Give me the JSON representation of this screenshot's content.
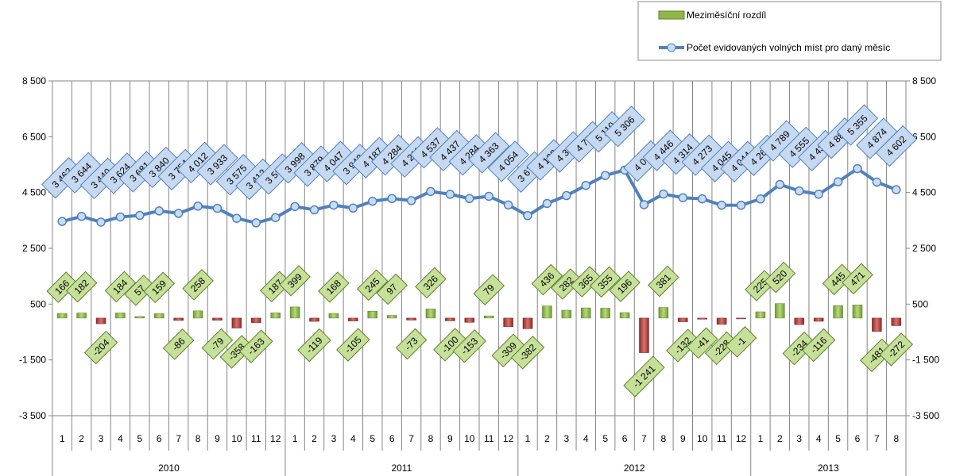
{
  "chart_data": {
    "type": "bar+line",
    "years": [
      {
        "label": "2010",
        "months": 12
      },
      {
        "label": "2011",
        "months": 12
      },
      {
        "label": "2012",
        "months": 12
      },
      {
        "label": "2013",
        "months": 8
      }
    ],
    "categories": [
      "1",
      "2",
      "3",
      "4",
      "5",
      "6",
      "7",
      "8",
      "9",
      "10",
      "11",
      "12",
      "1",
      "2",
      "3",
      "4",
      "5",
      "6",
      "7",
      "8",
      "9",
      "10",
      "11",
      "12",
      "1",
      "2",
      "3",
      "4",
      "5",
      "6",
      "7",
      "8",
      "9",
      "10",
      "11",
      "12",
      "1",
      "2",
      "3",
      "4",
      "5",
      "6",
      "7",
      "8"
    ],
    "yticks": [
      "8 500",
      "6 500",
      "4 500",
      "2 500",
      "500",
      "-1 500",
      "-3 500"
    ],
    "ylim": [
      -3500,
      8500
    ],
    "legend_position": "top-right",
    "series": [
      {
        "name": "Meziměsíční rozdíl",
        "kind": "bar",
        "color_positive": "#8fb84a",
        "color_negative": "#c0504d",
        "values": [
          166,
          182,
          -204,
          184,
          57,
          159,
          -86,
          258,
          -79,
          -358,
          -163,
          187,
          399,
          -119,
          168,
          -105,
          245,
          97,
          -73,
          326,
          -100,
          -153,
          79,
          -309,
          -382,
          436,
          282,
          365,
          355,
          196,
          -1241,
          381,
          -132,
          -41,
          -228,
          -1,
          225,
          520,
          -234,
          -116,
          445,
          471,
          -481,
          -272
        ],
        "labels": [
          "166",
          "182",
          "-204",
          "184",
          "57",
          "159",
          "-86",
          "258",
          "-79",
          "-358",
          "-163",
          "187",
          "399",
          "-119",
          "168",
          "-105",
          "245",
          "97",
          "-73",
          "326",
          "-100",
          "-153",
          "79",
          "-309",
          "-382",
          "436",
          "282",
          "365",
          "355",
          "196",
          "-1 241",
          "381",
          "-132",
          "-41",
          "-228",
          "-1",
          "225",
          "520",
          "-234",
          "-116",
          "445",
          "471",
          "-481",
          "-272"
        ]
      },
      {
        "name": "Počet evidovaných volných míst pro daný měsíc",
        "kind": "line",
        "color": "#4f81bd",
        "values": [
          3462,
          3644,
          3440,
          3624,
          3681,
          3840,
          3754,
          4012,
          3933,
          3575,
          3412,
          3599,
          3998,
          3879,
          4047,
          3942,
          4187,
          4284,
          4211,
          4537,
          4437,
          4284,
          4363,
          4054,
          3672,
          4108,
          4390,
          4755,
          5110,
          5306,
          4065,
          4446,
          4314,
          4273,
          4045,
          4044,
          4269,
          4789,
          4555,
          4439,
          4884,
          5355,
          4874,
          4602
        ],
        "labels": [
          "3 462",
          "3 644",
          "3 440",
          "3 624",
          "3 681",
          "3 840",
          "3 754",
          "4 012",
          "3 933",
          "3 575",
          "3 412",
          "3 599",
          "3 998",
          "3 879",
          "4 047",
          "3 942",
          "4 187",
          "4 284",
          "4 211",
          "4 537",
          "4 437",
          "4 284",
          "4 363",
          "4 054",
          "3 672",
          "4 108",
          "4 390",
          "4 755",
          "5 110",
          "5 306",
          "4 065",
          "4 446",
          "4 314",
          "4 273",
          "4 045",
          "4 044",
          "4 269",
          "4 789",
          "4 555",
          "4 439",
          "4 884",
          "5 355",
          "4 874",
          "4 602"
        ]
      }
    ]
  }
}
